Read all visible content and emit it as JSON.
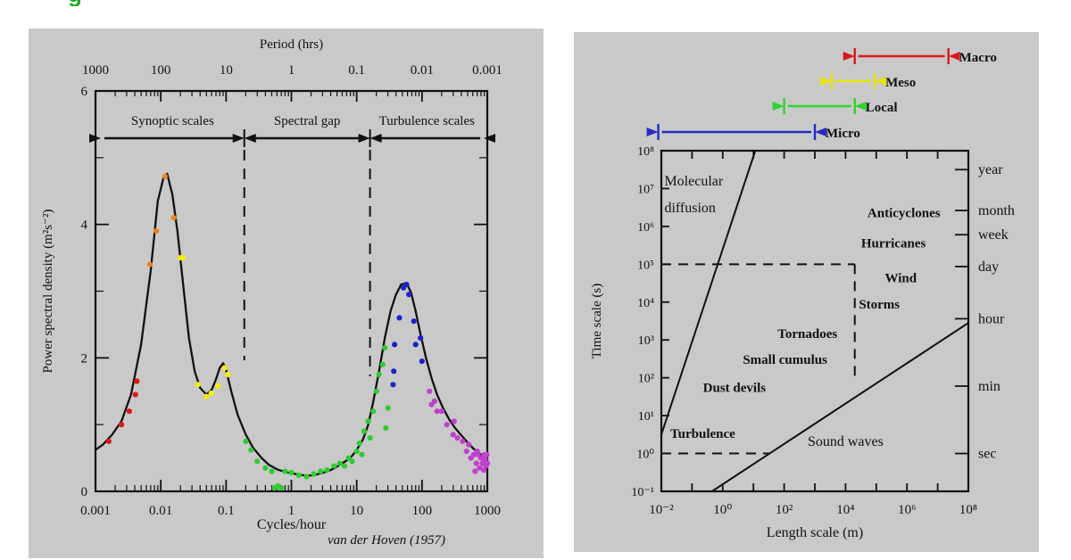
{
  "header": {
    "cropped_title_fragment": "g",
    "title_color": "#1fa91f"
  },
  "colors": {
    "panel_bg": "#c9c9c9",
    "axis": "#111111",
    "curve": "#111111",
    "dashed": "#111111"
  },
  "chart_data": [
    {
      "id": "van-der-hoven-spectrum",
      "type": "line",
      "top_axis_label": "Period (hrs)",
      "top_tick_labels": [
        "1000",
        "100",
        "10",
        "1",
        "0.1",
        "0.01",
        "0.001"
      ],
      "xlabel": "Cycles/hour",
      "x_tick_labels": [
        "0.001",
        "0.01",
        "0.1",
        "1",
        "10",
        "100",
        "1000"
      ],
      "x_log_range": [
        -3,
        3
      ],
      "ylabel": "Power spectral density (m²s⁻²)",
      "y_ticks": [
        0,
        2,
        4,
        6
      ],
      "ylim": [
        0,
        6
      ],
      "attribution": "van der Hoven (1957)",
      "regions": [
        {
          "label": "Synoptic scales",
          "x_from": 0.001,
          "x_to": 0.19
        },
        {
          "label": "Spectral gap",
          "x_from": 0.19,
          "x_to": 16
        },
        {
          "label": "Turbulence scales",
          "x_from": 16,
          "x_to": 1000
        }
      ],
      "dashed_boundaries_cycles_per_hour": [
        0.19,
        16
      ],
      "curve_points": [
        [
          0.001,
          0.62
        ],
        [
          0.0013,
          0.7
        ],
        [
          0.0018,
          0.85
        ],
        [
          0.0025,
          1.05
        ],
        [
          0.0035,
          1.45
        ],
        [
          0.005,
          2.2
        ],
        [
          0.007,
          3.3
        ],
        [
          0.009,
          4.35
        ],
        [
          0.011,
          4.7
        ],
        [
          0.0125,
          4.76
        ],
        [
          0.015,
          4.45
        ],
        [
          0.018,
          3.9
        ],
        [
          0.022,
          3.1
        ],
        [
          0.027,
          2.3
        ],
        [
          0.033,
          1.8
        ],
        [
          0.04,
          1.55
        ],
        [
          0.05,
          1.45
        ],
        [
          0.06,
          1.52
        ],
        [
          0.07,
          1.68
        ],
        [
          0.08,
          1.85
        ],
        [
          0.09,
          1.92
        ],
        [
          0.1,
          1.82
        ],
        [
          0.12,
          1.5
        ],
        [
          0.15,
          1.15
        ],
        [
          0.2,
          0.85
        ],
        [
          0.26,
          0.65
        ],
        [
          0.35,
          0.5
        ],
        [
          0.45,
          0.4
        ],
        [
          0.6,
          0.33
        ],
        [
          0.8,
          0.29
        ],
        [
          1,
          0.27
        ],
        [
          1.3,
          0.25
        ],
        [
          1.7,
          0.235
        ],
        [
          2.2,
          0.24
        ],
        [
          2.8,
          0.27
        ],
        [
          3.6,
          0.3
        ],
        [
          4.6,
          0.35
        ],
        [
          6,
          0.42
        ],
        [
          8,
          0.5
        ],
        [
          10,
          0.62
        ],
        [
          12.5,
          0.78
        ],
        [
          15,
          1.0
        ],
        [
          18,
          1.35
        ],
        [
          22,
          1.8
        ],
        [
          27,
          2.3
        ],
        [
          33,
          2.7
        ],
        [
          40,
          2.95
        ],
        [
          48,
          3.1
        ],
        [
          58,
          3.12
        ],
        [
          68,
          2.98
        ],
        [
          80,
          2.7
        ],
        [
          95,
          2.35
        ],
        [
          115,
          2.0
        ],
        [
          140,
          1.7
        ],
        [
          170,
          1.45
        ],
        [
          210,
          1.25
        ],
        [
          260,
          1.08
        ],
        [
          320,
          0.95
        ],
        [
          400,
          0.84
        ],
        [
          500,
          0.73
        ],
        [
          630,
          0.63
        ],
        [
          800,
          0.55
        ],
        [
          1000,
          0.48
        ]
      ],
      "scatter_series": [
        {
          "name": "red-points",
          "color": "#e01818",
          "points": [
            [
              0.0016,
              0.75
            ],
            [
              0.0025,
              1.0
            ],
            [
              0.0033,
              1.2
            ],
            [
              0.0041,
              1.45
            ],
            [
              0.0043,
              1.65
            ]
          ]
        },
        {
          "name": "orange-points",
          "color": "#f08020",
          "points": [
            [
              0.0068,
              3.4
            ],
            [
              0.0085,
              3.9
            ],
            [
              0.0116,
              4.72
            ],
            [
              0.0158,
              4.1
            ]
          ]
        },
        {
          "name": "yellow-points",
          "color": "#eeee00",
          "points": [
            [
              0.02,
              3.5
            ],
            [
              0.022,
              3.5
            ],
            [
              0.037,
              1.6
            ],
            [
              0.05,
              1.42
            ],
            [
              0.059,
              1.47
            ],
            [
              0.076,
              1.58
            ],
            [
              0.095,
              1.85
            ],
            [
              0.107,
              1.75
            ]
          ]
        },
        {
          "name": "green-points",
          "color": "#2ecc2e",
          "points": [
            [
              0.2,
              0.75
            ],
            [
              0.24,
              0.62
            ],
            [
              0.3,
              0.45
            ],
            [
              0.4,
              0.35
            ],
            [
              0.5,
              0.3
            ],
            [
              0.55,
              0.05
            ],
            [
              0.62,
              0.08
            ],
            [
              0.7,
              0.05
            ],
            [
              0.8,
              0.3
            ],
            [
              1.0,
              0.28
            ],
            [
              1.3,
              0.24
            ],
            [
              1.7,
              0.22
            ],
            [
              2.2,
              0.26
            ],
            [
              2.8,
              0.3
            ],
            [
              3.5,
              0.32
            ],
            [
              4.5,
              0.38
            ],
            [
              5.5,
              0.42
            ],
            [
              6.5,
              0.38
            ],
            [
              7.5,
              0.5
            ],
            [
              8.5,
              0.45
            ],
            [
              10,
              0.6
            ],
            [
              11,
              0.72
            ],
            [
              12,
              0.55
            ],
            [
              13,
              0.9
            ],
            [
              15,
              1.05
            ],
            [
              16,
              0.8
            ],
            [
              18,
              1.2
            ],
            [
              20,
              1.5
            ],
            [
              22,
              1.75
            ],
            [
              25,
              1.9
            ],
            [
              27,
              2.15
            ],
            [
              28,
              0.95
            ],
            [
              30,
              1.25
            ]
          ]
        },
        {
          "name": "blue-points",
          "color": "#2020c8",
          "points": [
            [
              36,
              1.6
            ],
            [
              37,
              1.8
            ],
            [
              38,
              2.2
            ],
            [
              45,
              2.6
            ],
            [
              52,
              3.05
            ],
            [
              58,
              3.1
            ],
            [
              63,
              2.95
            ],
            [
              75,
              2.55
            ],
            [
              80,
              2.2
            ],
            [
              95,
              2.3
            ],
            [
              100,
              1.95
            ]
          ]
        },
        {
          "name": "magenta-points",
          "color": "#c040d0",
          "points": [
            [
              130,
              1.5
            ],
            [
              140,
              1.3
            ],
            [
              155,
              1.35
            ],
            [
              170,
              1.2
            ],
            [
              200,
              1.2
            ],
            [
              240,
              1.0
            ],
            [
              300,
              0.85
            ],
            [
              310,
              1.05
            ],
            [
              350,
              0.8
            ],
            [
              420,
              0.75
            ],
            [
              480,
              0.6
            ],
            [
              520,
              0.7
            ],
            [
              560,
              0.5
            ],
            [
              620,
              0.55
            ],
            [
              650,
              0.3
            ],
            [
              680,
              0.42
            ],
            [
              700,
              0.6
            ],
            [
              720,
              0.55
            ],
            [
              760,
              0.35
            ],
            [
              800,
              0.5
            ],
            [
              840,
              0.42
            ],
            [
              880,
              0.32
            ],
            [
              900,
              0.55
            ],
            [
              920,
              0.48
            ],
            [
              950,
              0.38
            ],
            [
              980,
              0.55
            ],
            [
              1000,
              0.42
            ]
          ]
        }
      ]
    },
    {
      "id": "atmospheric-scales-diagram",
      "type": "scatter",
      "xlabel": "Length scale (m)",
      "ylabel": "Time scale (s)",
      "x_tick_labels": [
        "10⁻²",
        "10⁰",
        "10²",
        "10⁴",
        "10⁶",
        "10⁸"
      ],
      "x_tick_exp": [
        -2,
        0,
        2,
        4,
        6,
        8
      ],
      "y_tick_labels": [
        "10⁻¹",
        "10⁰",
        "10¹",
        "10²",
        "10³",
        "10⁴",
        "10⁵",
        "10⁶",
        "10⁷",
        "10⁸"
      ],
      "y_tick_exp": [
        -1,
        0,
        1,
        2,
        3,
        4,
        5,
        6,
        7,
        8
      ],
      "x_exp_range": [
        -2,
        8
      ],
      "y_exp_range": [
        -1,
        8
      ],
      "time_landmarks": [
        {
          "label": "year",
          "exp": 7.5
        },
        {
          "label": "month",
          "exp": 6.42
        },
        {
          "label": "week",
          "exp": 5.78
        },
        {
          "label": "day",
          "exp": 4.94
        },
        {
          "label": "hour",
          "exp": 3.56
        },
        {
          "label": "min",
          "exp": 1.78
        },
        {
          "label": "sec",
          "exp": 0
        }
      ],
      "scale_arrows": [
        {
          "label": "Macro",
          "color": "#d81818",
          "x_exp_from": 4.3,
          "x_exp_to": 7.35
        },
        {
          "label": "Meso",
          "color": "#e6e600",
          "x_exp_from": 3.55,
          "x_exp_to": 4.95
        },
        {
          "label": "Local",
          "color": "#2ed32e",
          "x_exp_from": 2.0,
          "x_exp_to": 4.3
        },
        {
          "label": "Micro",
          "color": "#2828c8",
          "x_exp_from": -2.1,
          "x_exp_to": 3.0
        }
      ],
      "phenomena_labels": [
        {
          "label": "Molecular diffusion",
          "lines": [
            "Molecular",
            "diffusion"
          ],
          "color": "#111111",
          "x_exp": -1.9,
          "y_exp": 7.2,
          "anchor": "start",
          "serif": true
        },
        {
          "label": "Anticyclones",
          "color": "#d82028",
          "x_exp": 5.9,
          "y_exp": 6.36
        },
        {
          "label": "Hurricanes",
          "color": "#f08030",
          "x_exp": 5.56,
          "y_exp": 5.56
        },
        {
          "label": "Wind",
          "color": "#ecec20",
          "x_exp": 5.8,
          "y_exp": 4.64
        },
        {
          "label": "Storms",
          "color": "#38e858",
          "x_exp": 5.1,
          "y_exp": 3.95
        },
        {
          "label": "Tornadoes",
          "color": "#40e0e0",
          "x_exp": 2.76,
          "y_exp": 3.17
        },
        {
          "label": "Small cumulus",
          "color": "#2828cc",
          "x_exp": 2.03,
          "y_exp": 2.49
        },
        {
          "label": "Dust devils",
          "color": "#b830b8",
          "x_exp": 0.38,
          "y_exp": 1.74
        },
        {
          "label": "Turbulence",
          "color": "#e838c8",
          "x_exp": -0.65,
          "y_exp": 0.53
        },
        {
          "label": "Sound waves",
          "color": "#111111",
          "x_exp": 4.0,
          "y_exp": 0.32,
          "serif": true
        }
      ],
      "solid_lines": [
        {
          "name": "molecular-diffusion-line",
          "from_exp": [
            -2,
            0.5
          ],
          "to_exp": [
            1.06,
            8
          ]
        },
        {
          "name": "sound-waves-line",
          "from_exp": [
            -0.35,
            -1
          ],
          "to_exp": [
            8,
            3.45
          ]
        }
      ],
      "dashed_lines": [
        {
          "name": "mesoscale-box-top",
          "from_exp": [
            -2,
            5
          ],
          "to_exp": [
            4.3,
            5
          ]
        },
        {
          "name": "mesoscale-box-right",
          "from_exp": [
            4.3,
            5
          ],
          "to_exp": [
            4.3,
            2
          ]
        },
        {
          "name": "one-second-line",
          "from_exp": [
            -2,
            0
          ],
          "to_exp": [
            1.52,
            0
          ]
        }
      ]
    }
  ]
}
